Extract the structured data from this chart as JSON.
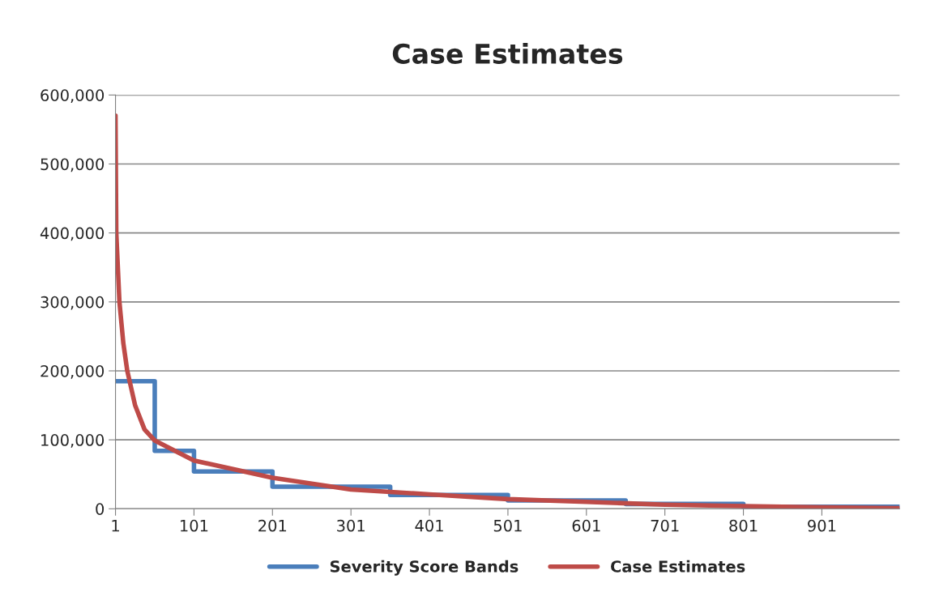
{
  "chart_data": {
    "type": "line",
    "title": "Case Estimates",
    "xlim": [
      1,
      1000
    ],
    "xticks": [
      1,
      101,
      201,
      301,
      401,
      501,
      601,
      701,
      801,
      901
    ],
    "ylim": [
      0,
      600000
    ],
    "yticks": [
      {
        "value": 0,
        "label": "0"
      },
      {
        "value": 100000,
        "label": "100,000"
      },
      {
        "value": 200000,
        "label": "200,000"
      },
      {
        "value": 300000,
        "label": "300,000"
      },
      {
        "value": 400000,
        "label": "400,000"
      },
      {
        "value": 500000,
        "label": "500,000"
      },
      {
        "value": 600000,
        "label": "600,000"
      }
    ],
    "grid": "y",
    "legend": "bottom",
    "marker": "none",
    "line_style": "solid",
    "series": [
      {
        "name": "Severity Score Bands",
        "type": "step",
        "color": "#4a7ebb",
        "x": [
          1,
          51,
          101,
          201,
          351,
          501,
          651,
          801,
          1000
        ],
        "values": [
          185000,
          84000,
          54000,
          32000,
          20000,
          12000,
          7000,
          3000,
          3000
        ]
      },
      {
        "name": "Case Estimates",
        "color": "#be4b48",
        "x": [
          1,
          2,
          6,
          11,
          16,
          26,
          38,
          51,
          101,
          201,
          301,
          401,
          501,
          601,
          701,
          801,
          901,
          1000
        ],
        "values": [
          570000,
          400000,
          300000,
          240000,
          200000,
          150000,
          115000,
          99000,
          70000,
          45000,
          28000,
          21000,
          14000,
          10000,
          6000,
          4000,
          2000,
          1000
        ]
      }
    ]
  }
}
